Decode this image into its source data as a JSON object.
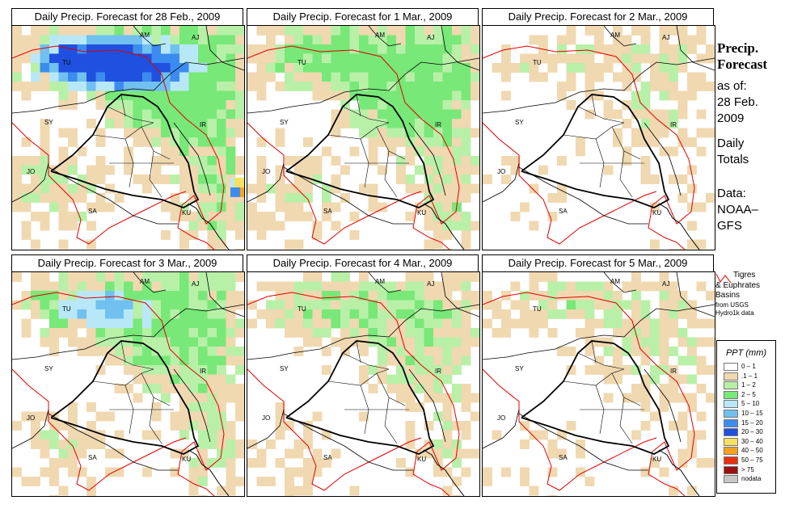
{
  "panels": [
    {
      "title": "Daily Precip. Forecast for  28 Feb., 2009",
      "intensity": 1.0,
      "blueness": 0.95,
      "shift": 0
    },
    {
      "title": "Daily Precip. Forecast for  1 Mar., 2009",
      "intensity": 0.85,
      "blueness": 0.25,
      "shift": 1
    },
    {
      "title": "Daily Precip. Forecast for  2 Mar., 2009",
      "intensity": 0.4,
      "blueness": 0.0,
      "shift": 2
    },
    {
      "title": "Daily Precip. Forecast for  3 Mar., 2009",
      "intensity": 0.8,
      "blueness": 0.5,
      "shift": 3
    },
    {
      "title": "Daily Precip. Forecast for  4 Mar., 2009",
      "intensity": 0.6,
      "blueness": 0.0,
      "shift": 4
    },
    {
      "title": "Daily Precip. Forecast for  5 Mar., 2009",
      "intensity": 0.45,
      "blueness": 0.0,
      "shift": 5
    }
  ],
  "country_labels": [
    "AM",
    "AJ",
    "TU",
    "SY",
    "IR",
    "JO",
    "SA",
    "KU"
  ],
  "side": {
    "title_line1": "Precip.",
    "title_line2": "Forecast",
    "asof": "as of:",
    "date1": "28 Feb.",
    "date2": "2009",
    "daily1": "Daily",
    "daily2": "Totals",
    "data1": "Data:",
    "data2": "NOAA–",
    "data3": "GFS"
  },
  "basin_legend": {
    "line1": "Tigres",
    "line2": "& Euphrates",
    "line3": "Basins",
    "line4": "from USGS",
    "line5": "Hydro1k data",
    "line_color": "#e00000"
  },
  "legend": {
    "title": "PPT (mm)",
    "items": [
      {
        "label": "0 – 1",
        "color": "#ffffff"
      },
      {
        "label": ".1 – 1",
        "color": "#f0d8b0"
      },
      {
        "label": "1 – 2",
        "color": "#b8f0a8"
      },
      {
        "label": "2 – 5",
        "color": "#78e878"
      },
      {
        "label": "5 – 10",
        "color": "#b8e8f8"
      },
      {
        "label": "10 – 15",
        "color": "#70c0f0"
      },
      {
        "label": "15 – 20",
        "color": "#3c8cf0"
      },
      {
        "label": "20 – 30",
        "color": "#2050e0"
      },
      {
        "label": "30 – 40",
        "color": "#f8e060"
      },
      {
        "label": "40 – 50",
        "color": "#f8a020"
      },
      {
        "label": "50 – 75",
        "color": "#e83010"
      },
      {
        "label": "> 75",
        "color": "#a01010"
      },
      {
        "label": "nodata",
        "color": "#c8c8c8"
      }
    ]
  }
}
